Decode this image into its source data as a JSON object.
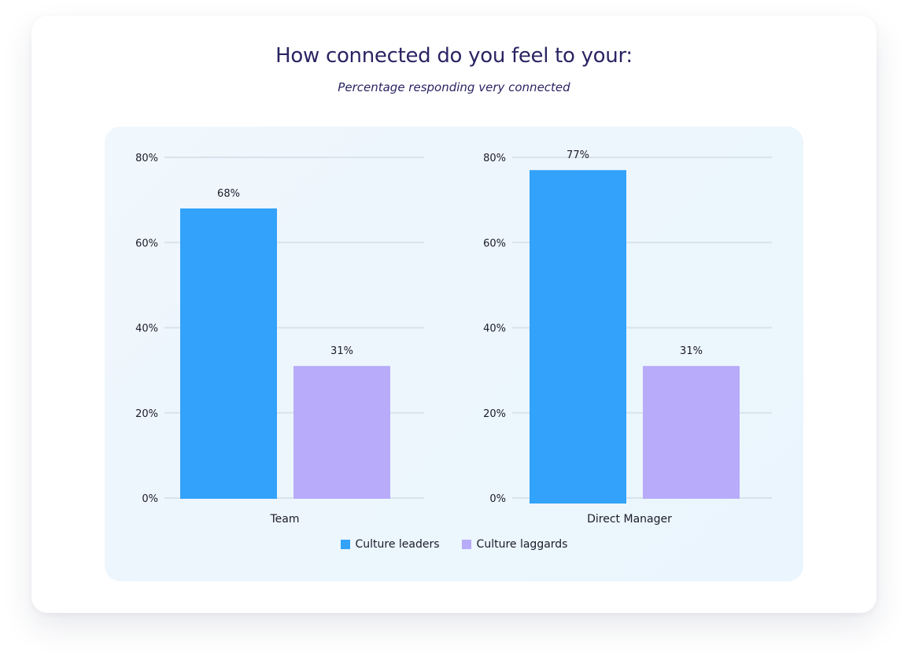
{
  "title": "How connected do you feel to your:",
  "subtitle": "Percentage responding very connected",
  "colors": {
    "culture_leaders": "#32a2fa",
    "culture_laggards": "#b7abfa",
    "gridline": "#d8e3ec",
    "title": "#2a2463"
  },
  "legend": [
    {
      "label": "Culture leaders",
      "color": "#32a2fa"
    },
    {
      "label": "Culture laggards",
      "color": "#b7abfa"
    }
  ],
  "chart_data": [
    {
      "type": "bar",
      "categories": [
        "Team"
      ],
      "series": [
        {
          "name": "Culture leaders",
          "values": [
            68
          ],
          "labels": [
            "68%"
          ]
        },
        {
          "name": "Culture laggards",
          "values": [
            31
          ],
          "labels": [
            "31%"
          ]
        }
      ],
      "ylim": [
        0,
        80
      ],
      "yticks": [
        "0%",
        "20%",
        "40%",
        "60%",
        "80%"
      ],
      "grid": true
    },
    {
      "type": "bar",
      "categories": [
        "Direct Manager"
      ],
      "series": [
        {
          "name": "Culture leaders",
          "values": [
            77
          ],
          "labels": [
            "77%"
          ]
        },
        {
          "name": "Culture laggards",
          "values": [
            31
          ],
          "labels": [
            "31%"
          ]
        }
      ],
      "ylim": [
        0,
        80
      ],
      "yticks": [
        "0%",
        "20%",
        "40%",
        "60%",
        "80%"
      ],
      "grid": true
    }
  ]
}
